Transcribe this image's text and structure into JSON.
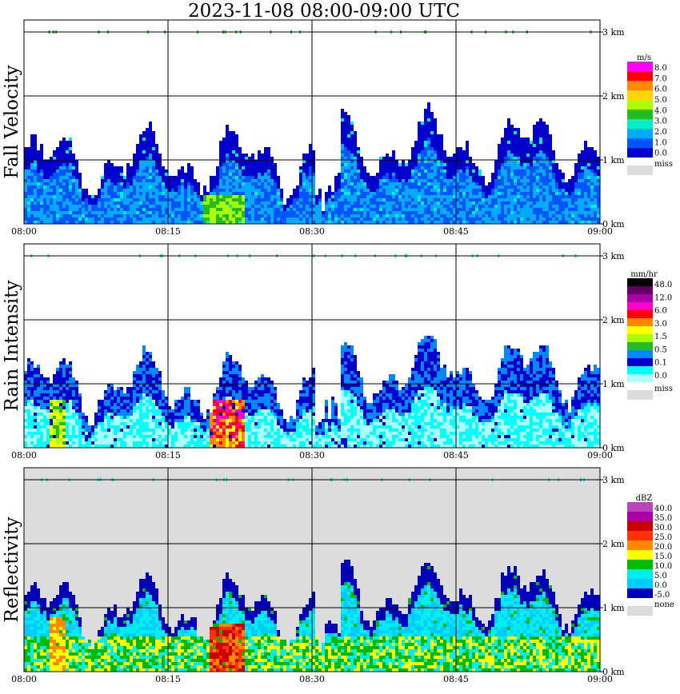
{
  "title": "2023-11-08   08:00-09:00 UTC",
  "chart_data": [
    {
      "type": "heatmap",
      "ylabel": "Fall Velocity",
      "x_ticks": [
        "08:00",
        "08:15",
        "08:30",
        "08:45",
        "09:00"
      ],
      "y_ticks": [
        "0 km",
        "1 km",
        "2 km",
        "3 km"
      ],
      "ylim_km": [
        0,
        3.2
      ],
      "grid": true,
      "legend": {
        "unit": "m/s",
        "levels": [
          "8.0",
          "7.0",
          "6.0",
          "5.0",
          "4.0",
          "3.0",
          "2.0",
          "1.0",
          "0.0"
        ],
        "colors": [
          "#ff00ff",
          "#ff0000",
          "#ff8c00",
          "#ffd700",
          "#aaff00",
          "#22bb22",
          "#00eecc",
          "#00aaff",
          "#0055ff",
          "#0000cc"
        ],
        "missing": "miss",
        "missing_color": "#dcdcdc"
      }
    },
    {
      "type": "heatmap",
      "ylabel": "Rain Intensity",
      "x_ticks": [
        "08:00",
        "08:15",
        "08:30",
        "08:45",
        "09:00"
      ],
      "y_ticks": [
        "0 km",
        "1 km",
        "2 km",
        "3 km"
      ],
      "ylim_km": [
        0,
        3.2
      ],
      "grid": true,
      "legend": {
        "unit": "mm/hr",
        "levels": [
          "48.0",
          "12.0",
          "6.0",
          "3.0",
          "1.5",
          "0.5",
          "0.1",
          "0.0"
        ],
        "colors": [
          "#000000",
          "#660066",
          "#aa00aa",
          "#ff00cc",
          "#ff0000",
          "#ff8800",
          "#ffff00",
          "#aaff00",
          "#22bb22",
          "#0088ff",
          "#0000cc",
          "#00ffff",
          "#aaffff"
        ],
        "missing": "miss",
        "missing_color": "#dcdcdc"
      }
    },
    {
      "type": "heatmap",
      "ylabel": "Reflectivity",
      "x_ticks": [
        "08:00",
        "08:15",
        "08:30",
        "08:45",
        "09:00"
      ],
      "y_ticks": [
        "0 km",
        "1 km",
        "2 km",
        "3 km"
      ],
      "ylim_km": [
        0,
        3.2
      ],
      "grid": true,
      "legend": {
        "unit": "dBZ",
        "levels": [
          "40.0",
          "35.0",
          "30.0",
          "25.0",
          "20.0",
          "15.0",
          "10.0",
          "5.0",
          "0.0",
          "-5.0"
        ],
        "colors": [
          "#bb44bb",
          "#aa00aa",
          "#cc0000",
          "#ff3300",
          "#ff8800",
          "#ffff00",
          "#00bb00",
          "#00eeee",
          "#00ccff",
          "#0000bb"
        ],
        "missing": "none",
        "missing_color": "#dcdcdc"
      }
    }
  ]
}
